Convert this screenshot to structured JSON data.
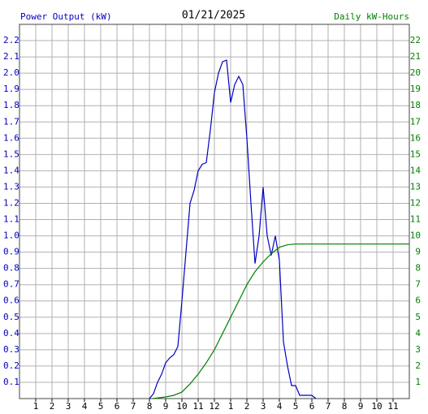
{
  "chart_data": {
    "type": "line",
    "title": "01/21/2025",
    "y_label": "Power Output (kW)",
    "y2_label": "Daily kW-Hours",
    "xlim": [
      0,
      24
    ],
    "xticks": [
      {
        "value": 1,
        "label": "1"
      },
      {
        "value": 2,
        "label": "2"
      },
      {
        "value": 3,
        "label": "3"
      },
      {
        "value": 4,
        "label": "4"
      },
      {
        "value": 5,
        "label": "5"
      },
      {
        "value": 6,
        "label": "6"
      },
      {
        "value": 7,
        "label": "7"
      },
      {
        "value": 8,
        "label": "8"
      },
      {
        "value": 9,
        "label": "9"
      },
      {
        "value": 10,
        "label": "10"
      },
      {
        "value": 11,
        "label": "11"
      },
      {
        "value": 12,
        "label": "12"
      },
      {
        "value": 13,
        "label": "1"
      },
      {
        "value": 14,
        "label": "2"
      },
      {
        "value": 15,
        "label": "3"
      },
      {
        "value": 16,
        "label": "4"
      },
      {
        "value": 17,
        "label": "5"
      },
      {
        "value": 18,
        "label": "6"
      },
      {
        "value": 19,
        "label": "7"
      },
      {
        "value": 20,
        "label": "8"
      },
      {
        "value": 21,
        "label": "9"
      },
      {
        "value": 22,
        "label": "10"
      },
      {
        "value": 23,
        "label": "11"
      }
    ],
    "ylim": [
      0,
      2.3
    ],
    "yticks": [
      0.1,
      0.2,
      0.3,
      0.4,
      0.5,
      0.6,
      0.7,
      0.8,
      0.9,
      {
        "value": 1,
        "label": "1.0"
      },
      1.1,
      1.2,
      1.3,
      1.4,
      1.5,
      1.6,
      1.7,
      1.8,
      1.9,
      {
        "value": 2,
        "label": "2.0"
      },
      2.1,
      2.2
    ],
    "y2lim": [
      0,
      23
    ],
    "y2ticks": [
      1,
      2,
      3,
      4,
      5,
      6,
      7,
      8,
      9,
      10,
      11,
      12,
      13,
      14,
      15,
      16,
      17,
      18,
      19,
      20,
      21,
      22
    ],
    "grid": true,
    "series": [
      {
        "name": "Power Output (kW)",
        "color": "#0000c0",
        "x": [
          8.0,
          8.25,
          8.5,
          8.75,
          9.0,
          9.25,
          9.5,
          9.75,
          10.0,
          10.25,
          10.5,
          10.75,
          11.0,
          11.25,
          11.5,
          11.75,
          12.0,
          12.25,
          12.5,
          12.75,
          13.0,
          13.25,
          13.5,
          13.75,
          14.0,
          14.25,
          14.5,
          14.75,
          15.0,
          15.25,
          15.5,
          15.75,
          16.0,
          16.25,
          16.5,
          16.75,
          17.0,
          17.25,
          17.5,
          18.0,
          18.25
        ],
        "values": [
          0,
          0.03,
          0.1,
          0.15,
          0.22,
          0.25,
          0.27,
          0.32,
          0.6,
          0.9,
          1.2,
          1.28,
          1.4,
          1.44,
          1.45,
          1.65,
          1.88,
          2.0,
          2.07,
          2.08,
          1.82,
          1.93,
          1.98,
          1.93,
          1.6,
          1.2,
          0.83,
          1.0,
          1.3,
          1.0,
          0.88,
          1.0,
          0.85,
          0.35,
          0.2,
          0.08,
          0.08,
          0.02,
          0.02,
          0.02,
          0
        ]
      },
      {
        "name": "Daily kW-Hours",
        "color": "#008000",
        "axis": "y2",
        "x": [
          8.2,
          9.0,
          9.5,
          10.0,
          10.5,
          11.0,
          11.5,
          12.0,
          12.5,
          13.0,
          13.5,
          14.0,
          14.5,
          15.0,
          15.5,
          16.0,
          16.5,
          17.0,
          24
        ],
        "values": [
          0,
          0.1,
          0.2,
          0.4,
          0.9,
          1.5,
          2.2,
          3.0,
          4.0,
          5.0,
          6.0,
          7.0,
          7.8,
          8.4,
          8.9,
          9.3,
          9.45,
          9.5,
          9.5
        ]
      }
    ]
  }
}
